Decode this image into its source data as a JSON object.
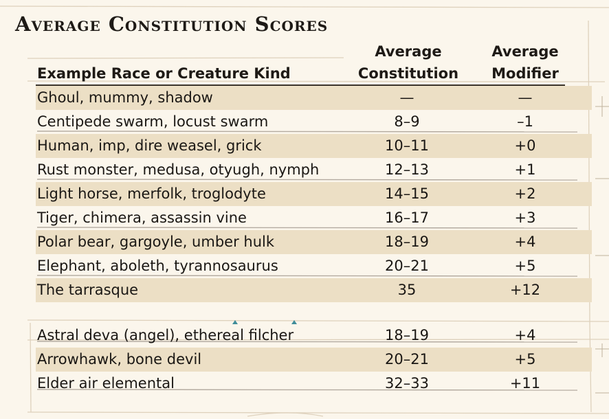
{
  "title": "Average Constitution Scores",
  "headers": {
    "race": "Example Race or Creature Kind",
    "constitution": [
      "Average",
      "Constitution"
    ],
    "modifier": [
      "Average",
      "Modifier"
    ]
  },
  "rows": [
    {
      "race": "Ghoul, mummy, shadow",
      "constitution": "—",
      "modifier": "—",
      "shaded": true
    },
    {
      "race": "Centipede swarm, locust swarm",
      "constitution": "8–9",
      "modifier": "–1",
      "shaded": false
    },
    {
      "race": "Human, imp, dire weasel, grick",
      "constitution": "10–11",
      "modifier": "+0",
      "shaded": true
    },
    {
      "race": "Rust monster, medusa, otyugh, nymph",
      "constitution": "12–13",
      "modifier": "+1",
      "shaded": false
    },
    {
      "race": "Light horse, merfolk, troglodyte",
      "constitution": "14–15",
      "modifier": "+2",
      "shaded": true
    },
    {
      "race": "Tiger, chimera, assassin vine",
      "constitution": "16–17",
      "modifier": "+3",
      "shaded": false
    },
    {
      "race": "Polar bear, gargoyle, umber hulk",
      "constitution": "18–19",
      "modifier": "+4",
      "shaded": true
    },
    {
      "race": "Elephant, aboleth, tyrannosaurus",
      "constitution": "20–21",
      "modifier": "+5",
      "shaded": false
    },
    {
      "race": "The tarrasque",
      "constitution": "35",
      "modifier": "+12",
      "shaded": true
    },
    {
      "race": "Astral deva (angel), ethereal filcher",
      "constitution": "18–19",
      "modifier": "+4",
      "shaded": false
    },
    {
      "race": "Arrowhawk, bone devil",
      "constitution": "20–21",
      "modifier": "+5",
      "shaded": true
    },
    {
      "race": "Elder air elemental",
      "constitution": "32–33",
      "modifier": "+11",
      "shaded": false
    }
  ]
}
